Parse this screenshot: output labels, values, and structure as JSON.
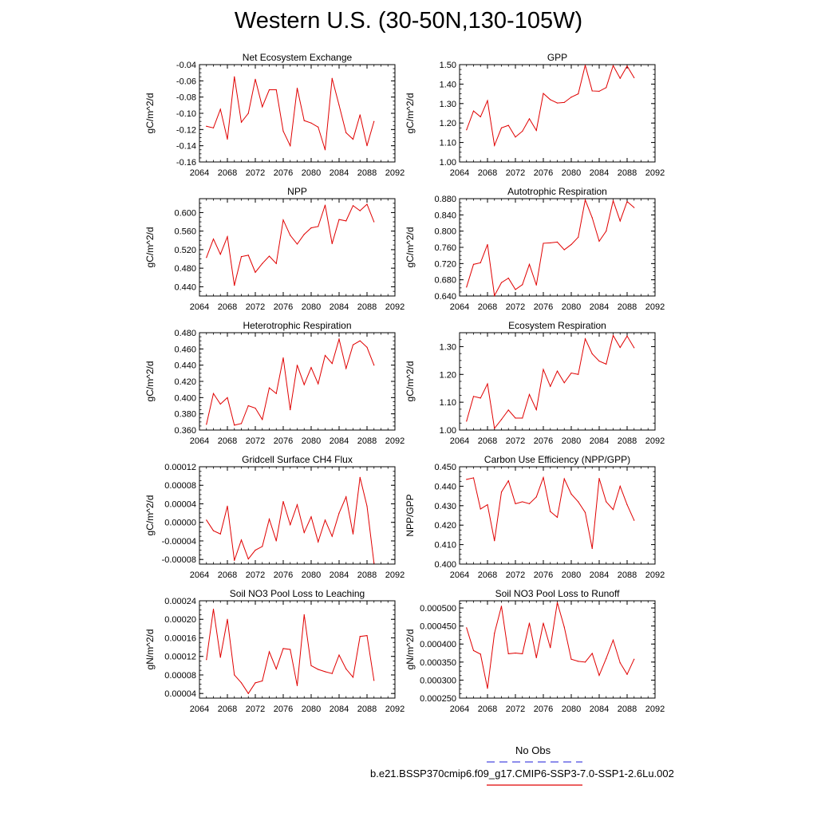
{
  "figure_title": "Western U.S. (30-50N,130-105W)",
  "legend": {
    "obs_label": "No Obs",
    "obs_color": "#4a4ae0",
    "model_label": "b.e21.BSSP370cmip6.f09_g17.CMIP6-SSP3-7.0-SSP1-2.6Lu.002",
    "model_color": "#e00000"
  },
  "chart_data": [
    {
      "type": "line",
      "title": "Net Ecosystem Exchange",
      "ylabel": "gC/m^2/d",
      "xlim": [
        2064,
        2092
      ],
      "ylim": [
        -0.16,
        -0.04
      ],
      "xticks": [
        "2064",
        "2068",
        "2072",
        "2076",
        "2080",
        "2084",
        "2088",
        "2092"
      ],
      "yticks": [
        "-0.16",
        "-0.14",
        "-0.12",
        "-0.10",
        "-0.08",
        "-0.06",
        "-0.04"
      ],
      "x": [
        2065,
        2066,
        2067,
        2068,
        2069,
        2070,
        2071,
        2072,
        2073,
        2074,
        2075,
        2076,
        2077,
        2078,
        2079,
        2080,
        2081,
        2082,
        2083,
        2084,
        2085,
        2086,
        2087,
        2088,
        2089
      ],
      "values": [
        -0.116,
        -0.118,
        -0.095,
        -0.132,
        -0.055,
        -0.111,
        -0.1,
        -0.058,
        -0.092,
        -0.071,
        -0.071,
        -0.122,
        -0.14,
        -0.069,
        -0.109,
        -0.112,
        -0.117,
        -0.145,
        -0.057,
        -0.09,
        -0.124,
        -0.132,
        -0.102,
        -0.14,
        -0.11
      ]
    },
    {
      "type": "line",
      "title": "GPP",
      "ylabel": "gC/m^2/d",
      "xlim": [
        2064,
        2092
      ],
      "ylim": [
        1.0,
        1.5
      ],
      "xticks": [
        "2064",
        "2068",
        "2072",
        "2076",
        "2080",
        "2084",
        "2088",
        "2092"
      ],
      "yticks": [
        "1.00",
        "1.10",
        "1.20",
        "1.30",
        "1.40",
        "1.50"
      ],
      "x": [
        2065,
        2066,
        2067,
        2068,
        2069,
        2070,
        2071,
        2072,
        2073,
        2074,
        2075,
        2076,
        2077,
        2078,
        2079,
        2080,
        2081,
        2082,
        2083,
        2084,
        2085,
        2086,
        2087,
        2088,
        2089
      ],
      "values": [
        1.165,
        1.262,
        1.232,
        1.315,
        1.085,
        1.175,
        1.188,
        1.128,
        1.158,
        1.222,
        1.162,
        1.352,
        1.32,
        1.303,
        1.306,
        1.333,
        1.35,
        1.497,
        1.365,
        1.363,
        1.382,
        1.495,
        1.43,
        1.493,
        1.433
      ]
    },
    {
      "type": "line",
      "title": "NPP",
      "ylabel": "gC/m^2/d",
      "xlim": [
        2064,
        2092
      ],
      "ylim": [
        0.42,
        0.63
      ],
      "xticks": [
        "2064",
        "2068",
        "2072",
        "2076",
        "2080",
        "2084",
        "2088",
        "2092"
      ],
      "yticks": [
        "0.440",
        "0.480",
        "0.520",
        "0.560",
        "0.600"
      ],
      "x": [
        2065,
        2066,
        2067,
        2068,
        2069,
        2070,
        2071,
        2072,
        2073,
        2074,
        2075,
        2076,
        2077,
        2078,
        2079,
        2080,
        2081,
        2082,
        2083,
        2084,
        2085,
        2086,
        2087,
        2088,
        2089
      ],
      "values": [
        0.503,
        0.543,
        0.51,
        0.548,
        0.443,
        0.505,
        0.508,
        0.471,
        0.49,
        0.506,
        0.49,
        0.584,
        0.551,
        0.532,
        0.553,
        0.567,
        0.57,
        0.616,
        0.533,
        0.585,
        0.582,
        0.615,
        0.604,
        0.618,
        0.58
      ]
    },
    {
      "type": "line",
      "title": "Autotrophic Respiration",
      "ylabel": "gC/m^2/d",
      "xlim": [
        2064,
        2092
      ],
      "ylim": [
        0.64,
        0.88
      ],
      "xticks": [
        "2064",
        "2068",
        "2072",
        "2076",
        "2080",
        "2084",
        "2088",
        "2092"
      ],
      "yticks": [
        "0.640",
        "0.680",
        "0.720",
        "0.760",
        "0.800",
        "0.840",
        "0.880"
      ],
      "x": [
        2065,
        2066,
        2067,
        2068,
        2069,
        2070,
        2071,
        2072,
        2073,
        2074,
        2075,
        2076,
        2077,
        2078,
        2079,
        2080,
        2081,
        2082,
        2083,
        2084,
        2085,
        2086,
        2087,
        2088,
        2089
      ],
      "values": [
        0.662,
        0.718,
        0.722,
        0.767,
        0.641,
        0.673,
        0.684,
        0.656,
        0.668,
        0.718,
        0.667,
        0.77,
        0.771,
        0.773,
        0.754,
        0.767,
        0.785,
        0.877,
        0.833,
        0.775,
        0.8,
        0.875,
        0.825,
        0.873,
        0.858
      ]
    },
    {
      "type": "line",
      "title": "Heterotrophic Respiration",
      "ylabel": "gC/m^2/d",
      "xlim": [
        2064,
        2092
      ],
      "ylim": [
        0.36,
        0.48
      ],
      "xticks": [
        "2064",
        "2068",
        "2072",
        "2076",
        "2080",
        "2084",
        "2088",
        "2092"
      ],
      "yticks": [
        "0.360",
        "0.380",
        "0.400",
        "0.420",
        "0.440",
        "0.460",
        "0.480"
      ],
      "x": [
        2065,
        2066,
        2067,
        2068,
        2069,
        2070,
        2071,
        2072,
        2073,
        2074,
        2075,
        2076,
        2077,
        2078,
        2079,
        2080,
        2081,
        2082,
        2083,
        2084,
        2085,
        2086,
        2087,
        2088,
        2089
      ],
      "values": [
        0.367,
        0.405,
        0.392,
        0.4,
        0.366,
        0.368,
        0.39,
        0.387,
        0.373,
        0.412,
        0.405,
        0.449,
        0.385,
        0.44,
        0.416,
        0.437,
        0.417,
        0.452,
        0.442,
        0.472,
        0.436,
        0.465,
        0.47,
        0.462,
        0.44
      ]
    },
    {
      "type": "line",
      "title": "Ecosystem Respiration",
      "ylabel": "gC/m^2/d",
      "xlim": [
        2064,
        2092
      ],
      "ylim": [
        1.0,
        1.35
      ],
      "xticks": [
        "2064",
        "2068",
        "2072",
        "2076",
        "2080",
        "2084",
        "2088",
        "2092"
      ],
      "yticks": [
        "1.00",
        "1.10",
        "1.20",
        "1.30"
      ],
      "x": [
        2065,
        2066,
        2067,
        2068,
        2069,
        2070,
        2071,
        2072,
        2073,
        2074,
        2075,
        2076,
        2077,
        2078,
        2079,
        2080,
        2081,
        2082,
        2083,
        2084,
        2085,
        2086,
        2087,
        2088,
        2089
      ],
      "values": [
        1.032,
        1.121,
        1.115,
        1.166,
        1.006,
        1.038,
        1.072,
        1.043,
        1.043,
        1.128,
        1.073,
        1.218,
        1.157,
        1.212,
        1.17,
        1.205,
        1.2,
        1.328,
        1.274,
        1.248,
        1.237,
        1.34,
        1.297,
        1.338,
        1.296
      ]
    },
    {
      "type": "line",
      "title": "Gridcell Surface CH4 Flux",
      "ylabel": "gC/m^2/d",
      "xlim": [
        2064,
        2092
      ],
      "ylim": [
        -9e-05,
        0.00012
      ],
      "xticks": [
        "2064",
        "2068",
        "2072",
        "2076",
        "2080",
        "2084",
        "2088",
        "2092"
      ],
      "yticks": [
        "-0.00008",
        "-0.00004",
        "0.00000",
        "0.00004",
        "0.00008",
        "0.00012"
      ],
      "x": [
        2065,
        2066,
        2067,
        2068,
        2069,
        2070,
        2071,
        2072,
        2073,
        2074,
        2075,
        2076,
        2077,
        2078,
        2079,
        2080,
        2081,
        2082,
        2083,
        2084,
        2085,
        2086,
        2087,
        2088,
        2089
      ],
      "values": [
        5e-06,
        -1.8e-05,
        -2.5e-05,
        3.5e-05,
        -8.2e-05,
        -3.8e-05,
        -7.9e-05,
        -6e-05,
        -5.2e-05,
        7e-06,
        -4e-05,
        4.5e-05,
        -5e-06,
        3.8e-05,
        -2.2e-05,
        1.2e-05,
        -4.2e-05,
        5e-06,
        -3e-05,
        2e-05,
        5.5e-05,
        -2.5e-05,
        9.7e-05,
        3.5e-05,
        -8.8e-05
      ]
    },
    {
      "type": "line",
      "title": "Carbon Use Efficiency (NPP/GPP)",
      "ylabel": "NPP/GPP",
      "xlim": [
        2064,
        2092
      ],
      "ylim": [
        0.4,
        0.45
      ],
      "xticks": [
        "2064",
        "2068",
        "2072",
        "2076",
        "2080",
        "2084",
        "2088",
        "2092"
      ],
      "yticks": [
        "0.400",
        "0.410",
        "0.420",
        "0.430",
        "0.440",
        "0.450"
      ],
      "x": [
        2065,
        2066,
        2067,
        2068,
        2069,
        2070,
        2071,
        2072,
        2073,
        2074,
        2075,
        2076,
        2077,
        2078,
        2079,
        2080,
        2081,
        2082,
        2083,
        2084,
        2085,
        2086,
        2087,
        2088,
        2089
      ],
      "values": [
        0.4435,
        0.4443,
        0.4283,
        0.4305,
        0.412,
        0.437,
        0.4428,
        0.431,
        0.432,
        0.431,
        0.4345,
        0.4445,
        0.427,
        0.424,
        0.4438,
        0.436,
        0.432,
        0.4265,
        0.408,
        0.444,
        0.432,
        0.428,
        0.44,
        0.4305,
        0.4225
      ]
    },
    {
      "type": "line",
      "title": "Soil NO3 Pool Loss to Leaching",
      "ylabel": "gN/m^2/d",
      "xlim": [
        2064,
        2092
      ],
      "ylim": [
        3e-05,
        0.00024
      ],
      "xticks": [
        "2064",
        "2068",
        "2072",
        "2076",
        "2080",
        "2084",
        "2088",
        "2092"
      ],
      "yticks": [
        "0.00004",
        "0.00008",
        "0.00012",
        "0.00016",
        "0.00020",
        "0.00024"
      ],
      "x": [
        2065,
        2066,
        2067,
        2068,
        2069,
        2070,
        2071,
        2072,
        2073,
        2074,
        2075,
        2076,
        2077,
        2078,
        2079,
        2080,
        2081,
        2082,
        2083,
        2084,
        2085,
        2086,
        2087,
        2088,
        2089
      ],
      "values": [
        0.000113,
        0.000222,
        0.000118,
        0.0002,
        8e-05,
        6.3e-05,
        4e-05,
        6.3e-05,
        6.7e-05,
        0.00013,
        9.3e-05,
        0.000137,
        0.000135,
        5.7e-05,
        0.00021,
        0.0001,
        9.2e-05,
        8.7e-05,
        8.3e-05,
        0.000123,
        9.3e-05,
        7.5e-05,
        0.000163,
        0.000165,
        6.8e-05
      ]
    },
    {
      "type": "line",
      "title": "Soil NO3 Pool Loss to Runoff",
      "ylabel": "gN/m^2/d",
      "xlim": [
        2064,
        2092
      ],
      "ylim": [
        0.00025,
        0.00052
      ],
      "xticks": [
        "2064",
        "2068",
        "2072",
        "2076",
        "2080",
        "2084",
        "2088",
        "2092"
      ],
      "yticks": [
        "0.000250",
        "0.000300",
        "0.000350",
        "0.000400",
        "0.000450",
        "0.000500"
      ],
      "x": [
        2065,
        2066,
        2067,
        2068,
        2069,
        2070,
        2071,
        2072,
        2073,
        2074,
        2075,
        2076,
        2077,
        2078,
        2079,
        2080,
        2081,
        2082,
        2083,
        2084,
        2085,
        2086,
        2087,
        2088,
        2089
      ],
      "values": [
        0.000445,
        0.000382,
        0.000372,
        0.000277,
        0.00043,
        0.000505,
        0.000373,
        0.000375,
        0.000373,
        0.000458,
        0.000362,
        0.000458,
        0.00039,
        0.000515,
        0.000447,
        0.000358,
        0.000352,
        0.00035,
        0.000374,
        0.000313,
        0.00036,
        0.000411,
        0.000348,
        0.000316,
        0.000358
      ]
    }
  ]
}
